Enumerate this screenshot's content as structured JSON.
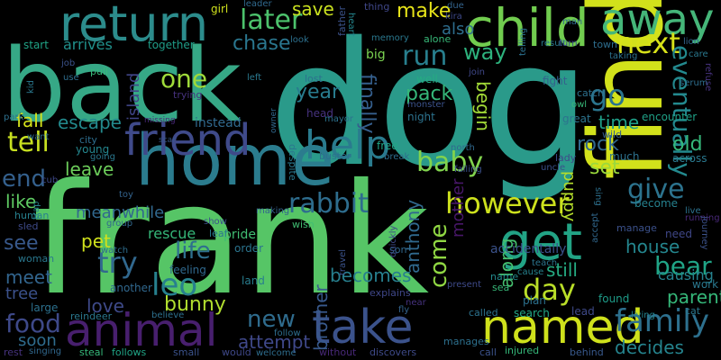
{
  "words": [
    {
      "id": "dog",
      "text": "dog",
      "color": "#2a9a8a"
    },
    {
      "id": "frank",
      "text": "frank",
      "color": "#56c566"
    },
    {
      "id": "back",
      "text": "back",
      "color": "#36a886"
    },
    {
      "id": "find",
      "text": "find",
      "color": "#d2e11b"
    },
    {
      "id": "home",
      "text": "home",
      "color": "#2b7c8e"
    },
    {
      "id": "child",
      "text": "child",
      "color": "#71cc4f"
    },
    {
      "id": "away",
      "text": "away",
      "color": "#45b679"
    },
    {
      "id": "return",
      "text": "return",
      "color": "#2c8c8c"
    },
    {
      "id": "named",
      "text": "named",
      "color": "#cfe11c"
    },
    {
      "id": "take",
      "text": "take",
      "color": "#3b528b"
    },
    {
      "id": "animal",
      "text": "animal",
      "color": "#481f6e"
    },
    {
      "id": "friend",
      "text": "friend",
      "color": "#3f4a8a"
    },
    {
      "id": "get",
      "text": "get",
      "color": "#22a385"
    },
    {
      "id": "help",
      "text": "help",
      "color": "#2a7b8e"
    },
    {
      "id": "next",
      "text": "next",
      "color": "#d8e219"
    },
    {
      "id": "however",
      "text": "however",
      "color": "#cde11d"
    },
    {
      "id": "eventually",
      "text": "eventually",
      "color": "#23898e"
    },
    {
      "id": "family",
      "text": "family",
      "color": "#2d708e"
    },
    {
      "id": "rabbit",
      "text": "rabbit",
      "color": "#2e6d8e"
    },
    {
      "id": "baby",
      "text": "baby",
      "color": "#81d34d"
    },
    {
      "id": "later",
      "text": "later",
      "color": "#4cc26c"
    },
    {
      "id": "run",
      "text": "run",
      "color": "#287f8e"
    },
    {
      "id": "go",
      "text": "go",
      "color": "#2b758e"
    },
    {
      "id": "day",
      "text": "day",
      "color": "#bade28"
    },
    {
      "id": "tell",
      "text": "tell",
      "color": "#c7e020"
    },
    {
      "id": "one",
      "text": "one",
      "color": "#9fda3a"
    },
    {
      "id": "try",
      "text": "try",
      "color": "#31688e"
    },
    {
      "id": "leo",
      "text": "leo",
      "color": "#27808e"
    },
    {
      "id": "end",
      "text": "end",
      "color": "#34608d"
    },
    {
      "id": "give",
      "text": "give",
      "color": "#2c738e"
    },
    {
      "id": "bear",
      "text": "bear",
      "color": "#20a486"
    },
    {
      "id": "food",
      "text": "food",
      "color": "#3e4989"
    },
    {
      "id": "come",
      "text": "come",
      "color": "#90d743"
    },
    {
      "id": "new",
      "text": "new",
      "color": "#2f6c8e"
    },
    {
      "id": "life",
      "text": "life",
      "color": "#2e6f8e"
    },
    {
      "id": "way",
      "text": "way",
      "color": "#2db27d"
    },
    {
      "id": "make",
      "text": "make",
      "color": "#e7e419"
    },
    {
      "id": "save",
      "text": "save",
      "color": "#cae11f"
    },
    {
      "id": "chase",
      "text": "chase",
      "color": "#2a768e"
    },
    {
      "id": "also",
      "text": "also",
      "color": "#2e6e8e"
    },
    {
      "id": "island",
      "text": "island",
      "color": "#404588"
    },
    {
      "id": "pack",
      "text": "pack",
      "color": "#35b779"
    },
    {
      "id": "year",
      "text": "year",
      "color": "#287c8e"
    },
    {
      "id": "rock",
      "text": "rock",
      "color": "#31688e"
    },
    {
      "id": "old",
      "text": "old",
      "color": "#35b779"
    },
    {
      "id": "set",
      "text": "set",
      "color": "#9bd93c"
    },
    {
      "id": "house",
      "text": "house",
      "color": "#24868e"
    },
    {
      "id": "see",
      "text": "see",
      "color": "#38598c"
    },
    {
      "id": "like",
      "text": "like",
      "color": "#5ec962"
    },
    {
      "id": "leave",
      "text": "leave",
      "color": "#6ccd5a"
    },
    {
      "id": "fall",
      "text": "fall",
      "color": "#d5e21a"
    },
    {
      "id": "escape",
      "text": "escape",
      "color": "#238a8d"
    },
    {
      "id": "time",
      "text": "time",
      "color": "#1f9f88"
    },
    {
      "id": "finally",
      "text": "finally",
      "color": "#355f8d"
    },
    {
      "id": "begin",
      "text": "begin",
      "color": "#a2da37"
    },
    {
      "id": "pet",
      "text": "pet",
      "color": "#d0e11c"
    },
    {
      "id": "meanwhile",
      "text": "meanwhile",
      "color": "#31688e"
    },
    {
      "id": "bunny",
      "text": "bunny",
      "color": "#b0dd2f"
    },
    {
      "id": "love",
      "text": "love",
      "color": "#3e4a89"
    },
    {
      "id": "brother",
      "text": "brother",
      "color": "#38598c"
    },
    {
      "id": "becomes",
      "text": "becomes",
      "color": "#277f8e"
    },
    {
      "id": "anthony",
      "text": "anthony",
      "color": "#30698e"
    },
    {
      "id": "mother",
      "text": "mother",
      "color": "#481769"
    },
    {
      "id": "along",
      "text": "along",
      "color": "#46c06f"
    },
    {
      "id": "still",
      "text": "still",
      "color": "#25ab82"
    },
    {
      "id": "puppy",
      "text": "puppy",
      "color": "#b5de2b"
    },
    {
      "id": "parent",
      "text": "parent",
      "color": "#35b779"
    },
    {
      "id": "causing",
      "text": "causing",
      "color": "#26828e"
    },
    {
      "id": "decides",
      "text": "decides",
      "color": "#25848e"
    },
    {
      "id": "meet",
      "text": "meet",
      "color": "#32658e"
    },
    {
      "id": "tree",
      "text": "tree",
      "color": "#3b518b"
    },
    {
      "id": "rescue",
      "text": "rescue",
      "color": "#35b779"
    },
    {
      "id": "soon",
      "text": "soon",
      "color": "#2f6c8e"
    },
    {
      "id": "attempt",
      "text": "attempt",
      "color": "#3f4889"
    },
    {
      "id": "pride",
      "text": "pride",
      "color": "#40bd72"
    },
    {
      "id": "work",
      "text": "work",
      "color": "#2a788e"
    },
    {
      "id": "arrives",
      "text": "arrives",
      "color": "#21918c"
    },
    {
      "id": "start",
      "text": "start",
      "color": "#20a386"
    },
    {
      "id": "together",
      "text": "together",
      "color": "#1f9e89"
    },
    {
      "id": "instead",
      "text": "instead",
      "color": "#30698e"
    },
    {
      "id": "encounter",
      "text": "encounter",
      "color": "#1fa187"
    },
    {
      "id": "accidentally",
      "text": "accidentally",
      "color": "#3b528b"
    },
    {
      "id": "search",
      "text": "search",
      "color": "#22a785"
    },
    {
      "id": "plan",
      "text": "plan",
      "color": "#2c718e"
    },
    {
      "id": "found",
      "text": "found",
      "color": "#1e9c89"
    },
    {
      "id": "lead",
      "text": "lead",
      "color": "#3e4989"
    },
    {
      "id": "night",
      "text": "night",
      "color": "#2c728e"
    },
    {
      "id": "well",
      "text": "well",
      "color": "#25ab82"
    },
    {
      "id": "fight",
      "text": "fight",
      "color": "#34618d"
    },
    {
      "id": "great",
      "text": "great",
      "color": "#2c738e"
    },
    {
      "id": "wild",
      "text": "wild",
      "color": "#355e8d"
    },
    {
      "id": "much",
      "text": "much",
      "color": "#2d718e"
    },
    {
      "id": "across",
      "text": "across",
      "color": "#2a788e"
    },
    {
      "id": "become",
      "text": "become",
      "color": "#26818e"
    },
    {
      "id": "need",
      "text": "need",
      "color": "#3f4788"
    },
    {
      "id": "manage",
      "text": "manage",
      "color": "#3b518b"
    },
    {
      "id": "land",
      "text": "land",
      "color": "#287d8e"
    },
    {
      "id": "feeling",
      "text": "feeling",
      "color": "#30698e"
    },
    {
      "id": "order",
      "text": "order",
      "color": "#2b748e"
    },
    {
      "id": "large",
      "text": "large",
      "color": "#2c718e"
    },
    {
      "id": "woman",
      "text": "woman",
      "color": "#2a788e"
    },
    {
      "id": "human",
      "text": "human",
      "color": "#27808e"
    },
    {
      "id": "young",
      "text": "young",
      "color": "#24868e"
    },
    {
      "id": "city",
      "text": "city",
      "color": "#2e6e8e"
    },
    {
      "id": "sled",
      "text": "sled",
      "color": "#3e4a89"
    },
    {
      "id": "another",
      "text": "another",
      "color": "#31688e"
    },
    {
      "id": "small",
      "text": "small",
      "color": "#3b528b"
    },
    {
      "id": "reindeer",
      "text": "reindeer",
      "color": "#2a788e"
    },
    {
      "id": "believe",
      "text": "believe",
      "color": "#2d708e"
    },
    {
      "id": "steal",
      "text": "steal",
      "color": "#35b779"
    },
    {
      "id": "follows",
      "text": "follows",
      "color": "#20a486"
    },
    {
      "id": "rest",
      "text": "rest",
      "color": "#46327e"
    },
    {
      "id": "singing",
      "text": "singing",
      "color": "#31688e"
    },
    {
      "id": "would",
      "text": "would",
      "color": "#3f4889"
    },
    {
      "id": "welcome",
      "text": "welcome",
      "color": "#2e6d8e"
    },
    {
      "id": "without",
      "text": "without",
      "color": "#482878"
    },
    {
      "id": "discovers",
      "text": "discovers",
      "color": "#3e4a89"
    },
    {
      "id": "manages",
      "text": "manages",
      "color": "#2d708e"
    },
    {
      "id": "call",
      "text": "call",
      "color": "#3b528b"
    },
    {
      "id": "injured",
      "text": "injured",
      "color": "#35b779"
    },
    {
      "id": "behind",
      "text": "behind",
      "color": "#38598c"
    },
    {
      "id": "living",
      "text": "living",
      "color": "#25848e"
    },
    {
      "id": "cat",
      "text": "cat",
      "color": "#2a788e"
    },
    {
      "id": "called",
      "text": "called",
      "color": "#2c728e"
    },
    {
      "id": "name",
      "text": "name",
      "color": "#238a8d"
    },
    {
      "id": "sea",
      "text": "sea",
      "color": "#37b878"
    },
    {
      "id": "cause",
      "text": "cause",
      "color": "#26828e"
    },
    {
      "id": "teach",
      "text": "teach",
      "color": "#2b758e"
    },
    {
      "id": "making",
      "text": "making",
      "color": "#33638d"
    },
    {
      "id": "wish",
      "text": "wish",
      "color": "#40bd72"
    },
    {
      "id": "show",
      "text": "show",
      "color": "#3b518b"
    },
    {
      "id": "leaf",
      "text": "leaf",
      "color": "#2a788e"
    },
    {
      "id": "group",
      "text": "group",
      "color": "#31688e"
    },
    {
      "id": "watch",
      "text": "watch",
      "color": "#2e6e8e"
    },
    {
      "id": "cub",
      "text": "cub",
      "color": "#3e4989"
    },
    {
      "id": "toy",
      "text": "toy",
      "color": "#33638d"
    },
    {
      "id": "trap",
      "text": "trap",
      "color": "#26828e"
    },
    {
      "id": "park",
      "text": "park",
      "color": "#2d708e"
    },
    {
      "id": "kid",
      "text": "kid",
      "color": "#2a788e"
    },
    {
      "id": "job",
      "text": "job",
      "color": "#3b528b"
    },
    {
      "id": "use",
      "text": "use",
      "color": "#2e6d8e"
    },
    {
      "id": "pull",
      "text": "pull",
      "color": "#37b878"
    },
    {
      "id": "girl",
      "text": "girl",
      "color": "#cfe11c"
    },
    {
      "id": "leader",
      "text": "leader",
      "color": "#30698e"
    },
    {
      "id": "left",
      "text": "left",
      "color": "#2a788e"
    },
    {
      "id": "lost",
      "text": "lost",
      "color": "#2c718e"
    },
    {
      "id": "look",
      "text": "look",
      "color": "#2d708e"
    },
    {
      "id": "father",
      "text": "father",
      "color": "#3b528b"
    },
    {
      "id": "big",
      "text": "big",
      "color": "#7ad151"
    },
    {
      "id": "heart",
      "text": "heart",
      "color": "#24868e"
    },
    {
      "id": "thing",
      "text": "thing",
      "color": "#3f4788"
    },
    {
      "id": "memory",
      "text": "memory",
      "color": "#2a788e"
    },
    {
      "id": "alone",
      "text": "alone",
      "color": "#37b878"
    },
    {
      "id": "due",
      "text": "due",
      "color": "#33638d"
    },
    {
      "id": "kira",
      "text": "kira",
      "color": "#3e4989"
    },
    {
      "id": "town",
      "text": "town",
      "color": "#2e6e8e"
    },
    {
      "id": "join",
      "text": "join",
      "color": "#3f4889"
    },
    {
      "id": "monster",
      "text": "monster",
      "color": "#3b528b"
    },
    {
      "id": "head",
      "text": "head",
      "color": "#46327e"
    },
    {
      "id": "mayor",
      "text": "mayor",
      "color": "#2c728e"
    },
    {
      "id": "trying",
      "text": "trying",
      "color": "#46327e"
    },
    {
      "id": "missing",
      "text": "missing",
      "color": "#482878"
    },
    {
      "id": "scar",
      "text": "scar",
      "color": "#38598c"
    },
    {
      "id": "owner",
      "text": "owner",
      "color": "#31688e"
    },
    {
      "id": "buster",
      "text": "buster",
      "color": "#2c718e"
    },
    {
      "id": "despite",
      "text": "despite",
      "color": "#2a788e"
    },
    {
      "id": "free",
      "text": "free",
      "color": "#20a486"
    },
    {
      "id": "break",
      "text": "break",
      "color": "#2e6d8e"
    },
    {
      "id": "north",
      "text": "north",
      "color": "#30698e"
    },
    {
      "id": "falling",
      "text": "falling",
      "color": "#3b518b"
    },
    {
      "id": "son",
      "text": "son",
      "color": "#31688e"
    },
    {
      "id": "quickly",
      "text": "quickly",
      "color": "#3e4a89"
    },
    {
      "id": "explains",
      "text": "explains",
      "color": "#3f4788"
    },
    {
      "id": "travel",
      "text": "travel",
      "color": "#3b528b"
    },
    {
      "id": "near",
      "text": "near",
      "color": "#46327e"
    },
    {
      "id": "fly",
      "text": "fly",
      "color": "#33638d"
    },
    {
      "id": "follow",
      "text": "follow",
      "color": "#2e6e8e"
    },
    {
      "id": "telling",
      "text": "telling",
      "color": "#2c718e"
    },
    {
      "id": "catch",
      "text": "catch",
      "color": "#2d708e"
    },
    {
      "id": "owl",
      "text": "owl",
      "color": "#37b878"
    },
    {
      "id": "lady",
      "text": "lady",
      "color": "#3f4889"
    },
    {
      "id": "uncle",
      "text": "uncle",
      "color": "#3b528b"
    },
    {
      "id": "result",
      "text": "result",
      "color": "#2a788e"
    },
    {
      "id": "turn",
      "text": "turn",
      "color": "#3e4989"
    },
    {
      "id": "man",
      "text": "man",
      "color": "#30698e"
    },
    {
      "id": "lion",
      "text": "lion",
      "color": "#33638d"
    },
    {
      "id": "taking",
      "text": "taking",
      "color": "#2c728e"
    },
    {
      "id": "care",
      "text": "care",
      "color": "#2a788e"
    },
    {
      "id": "serum",
      "text": "serum",
      "color": "#2e6e8e"
    },
    {
      "id": "refuse",
      "text": "refuse",
      "color": "#46327e"
    },
    {
      "id": "sing",
      "text": "sing",
      "color": "#2d708e"
    },
    {
      "id": "accept",
      "text": "accept",
      "color": "#31688e"
    },
    {
      "id": "live",
      "text": "live",
      "color": "#2c718e"
    },
    {
      "id": "running",
      "text": "running",
      "color": "#482878"
    },
    {
      "id": "journey",
      "text": "journey",
      "color": "#3b528b"
    },
    {
      "id": "present",
      "text": "present",
      "color": "#3e4a89"
    },
    {
      "id": "going",
      "text": "going",
      "color": "#2a788e"
    },
    {
      "id": "want",
      "text": "want",
      "color": "#2e6d8e"
    }
  ]
}
